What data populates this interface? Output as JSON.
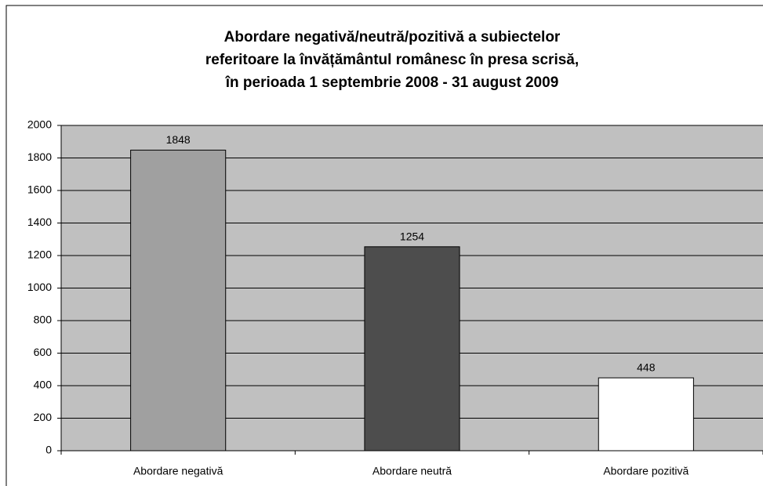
{
  "chart_data": {
    "type": "bar",
    "title": [
      "Abordare negativă/neutră/pozitivă a subiectelor",
      "referitoare la învățământul românesc în presa scrisă,",
      "în perioada 1 septembrie 2008 - 31 august 2009"
    ],
    "categories": [
      "Abordare negativă",
      "Abordare neutră",
      "Abordare pozitivă"
    ],
    "values": [
      1848,
      1254,
      448
    ],
    "colors": [
      "#a0a0a0",
      "#4d4d4d",
      "#ffffff"
    ],
    "ylim": [
      0,
      2000
    ],
    "yticks": [
      0,
      200,
      400,
      600,
      800,
      1000,
      1200,
      1400,
      1600,
      1800,
      2000
    ],
    "grid": true
  }
}
